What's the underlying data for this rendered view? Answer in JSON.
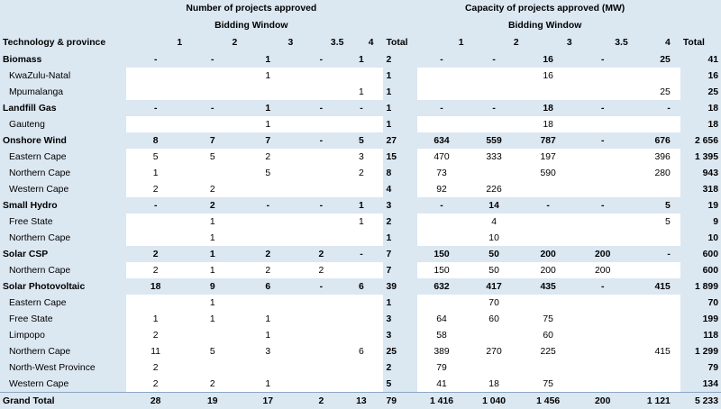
{
  "header": {
    "group_left": "Number of projects approved",
    "group_right": "Capacity of projects approved (MW)",
    "sub_left": "Bidding Window",
    "sub_right": "Bidding Window",
    "tech_label": "Technology & province",
    "windows_left": [
      "1",
      "2",
      "3",
      "3.5",
      "4"
    ],
    "total_left": "Total",
    "windows_right": [
      "1",
      "2",
      "3",
      "3.5",
      "4"
    ],
    "total_right": "Total"
  },
  "rows": [
    {
      "type": "tech",
      "label": "Biomass",
      "n": [
        "-",
        "-",
        "1",
        "-",
        "1"
      ],
      "nt": "2",
      "c": [
        "-",
        "-",
        "16",
        "-",
        "25"
      ],
      "ct": "41"
    },
    {
      "type": "prov",
      "label": "KwaZulu-Natal",
      "n": [
        "",
        "",
        "1",
        "",
        ""
      ],
      "nt": "1",
      "c": [
        "",
        "",
        "16",
        "",
        ""
      ],
      "ct": "16"
    },
    {
      "type": "prov",
      "label": "Mpumalanga",
      "n": [
        "",
        "",
        "",
        "",
        "1"
      ],
      "nt": "1",
      "c": [
        "",
        "",
        "",
        "",
        "25"
      ],
      "ct": "25"
    },
    {
      "type": "tech",
      "label": "Landfill Gas",
      "n": [
        "-",
        "-",
        "1",
        "-",
        "-"
      ],
      "nt": "1",
      "c": [
        "-",
        "-",
        "18",
        "-",
        "-"
      ],
      "ct": "18"
    },
    {
      "type": "prov",
      "label": "Gauteng",
      "n": [
        "",
        "",
        "1",
        "",
        ""
      ],
      "nt": "1",
      "c": [
        "",
        "",
        "18",
        "",
        ""
      ],
      "ct": "18"
    },
    {
      "type": "tech",
      "label": "Onshore Wind",
      "n": [
        "8",
        "7",
        "7",
        "-",
        "5"
      ],
      "nt": "27",
      "c": [
        "634",
        "559",
        "787",
        "-",
        "676"
      ],
      "ct": "2 656"
    },
    {
      "type": "prov",
      "label": "Eastern Cape",
      "n": [
        "5",
        "5",
        "2",
        "",
        "3"
      ],
      "nt": "15",
      "c": [
        "470",
        "333",
        "197",
        "",
        "396"
      ],
      "ct": "1 395"
    },
    {
      "type": "prov",
      "label": "Northern Cape",
      "n": [
        "1",
        "",
        "5",
        "",
        "2"
      ],
      "nt": "8",
      "c": [
        "73",
        "",
        "590",
        "",
        "280"
      ],
      "ct": "943"
    },
    {
      "type": "prov",
      "label": "Western Cape",
      "n": [
        "2",
        "2",
        "",
        "",
        ""
      ],
      "nt": "4",
      "c": [
        "92",
        "226",
        "",
        "",
        ""
      ],
      "ct": "318"
    },
    {
      "type": "tech",
      "label": "Small Hydro",
      "n": [
        "-",
        "2",
        "-",
        "-",
        "1"
      ],
      "nt": "3",
      "c": [
        "-",
        "14",
        "-",
        "-",
        "5"
      ],
      "ct": "19"
    },
    {
      "type": "prov",
      "label": "Free State",
      "n": [
        "",
        "1",
        "",
        "",
        "1"
      ],
      "nt": "2",
      "c": [
        "",
        "4",
        "",
        "",
        "5"
      ],
      "ct": "9"
    },
    {
      "type": "prov",
      "label": "Northern Cape",
      "n": [
        "",
        "1",
        "",
        "",
        ""
      ],
      "nt": "1",
      "c": [
        "",
        "10",
        "",
        "",
        ""
      ],
      "ct": "10"
    },
    {
      "type": "tech",
      "label": "Solar CSP",
      "n": [
        "2",
        "1",
        "2",
        "2",
        "-"
      ],
      "nt": "7",
      "c": [
        "150",
        "50",
        "200",
        "200",
        "-"
      ],
      "ct": "600"
    },
    {
      "type": "prov",
      "label": "Northern Cape",
      "n": [
        "2",
        "1",
        "2",
        "2",
        ""
      ],
      "nt": "7",
      "c": [
        "150",
        "50",
        "200",
        "200",
        ""
      ],
      "ct": "600"
    },
    {
      "type": "tech",
      "label": "Solar Photovoltaic",
      "n": [
        "18",
        "9",
        "6",
        "-",
        "6"
      ],
      "nt": "39",
      "c": [
        "632",
        "417",
        "435",
        "-",
        "415"
      ],
      "ct": "1 899"
    },
    {
      "type": "prov",
      "label": "Eastern Cape",
      "n": [
        "",
        "1",
        "",
        "",
        ""
      ],
      "nt": "1",
      "c": [
        "",
        "70",
        "",
        "",
        ""
      ],
      "ct": "70"
    },
    {
      "type": "prov",
      "label": "Free State",
      "n": [
        "1",
        "1",
        "1",
        "",
        ""
      ],
      "nt": "3",
      "c": [
        "64",
        "60",
        "75",
        "",
        ""
      ],
      "ct": "199"
    },
    {
      "type": "prov",
      "label": "Limpopo",
      "n": [
        "2",
        "",
        "1",
        "",
        ""
      ],
      "nt": "3",
      "c": [
        "58",
        "",
        "60",
        "",
        ""
      ],
      "ct": "118"
    },
    {
      "type": "prov",
      "label": "Northern Cape",
      "n": [
        "11",
        "5",
        "3",
        "",
        "6"
      ],
      "nt": "25",
      "c": [
        "389",
        "270",
        "225",
        "",
        "415"
      ],
      "ct": "1 299"
    },
    {
      "type": "prov",
      "label": "North-West Province",
      "n": [
        "2",
        "",
        "",
        "",
        ""
      ],
      "nt": "2",
      "c": [
        "79",
        "",
        "",
        "",
        ""
      ],
      "ct": "79"
    },
    {
      "type": "prov",
      "label": "Western Cape",
      "n": [
        "2",
        "2",
        "1",
        "",
        ""
      ],
      "nt": "5",
      "c": [
        "41",
        "18",
        "75",
        "",
        ""
      ],
      "ct": "134"
    },
    {
      "type": "total",
      "label": "Grand Total",
      "n": [
        "28",
        "19",
        "17",
        "2",
        "13"
      ],
      "nt": "79",
      "c": [
        "1 416",
        "1 040",
        "1 456",
        "200",
        "1 121"
      ],
      "ct": "5 233"
    }
  ]
}
